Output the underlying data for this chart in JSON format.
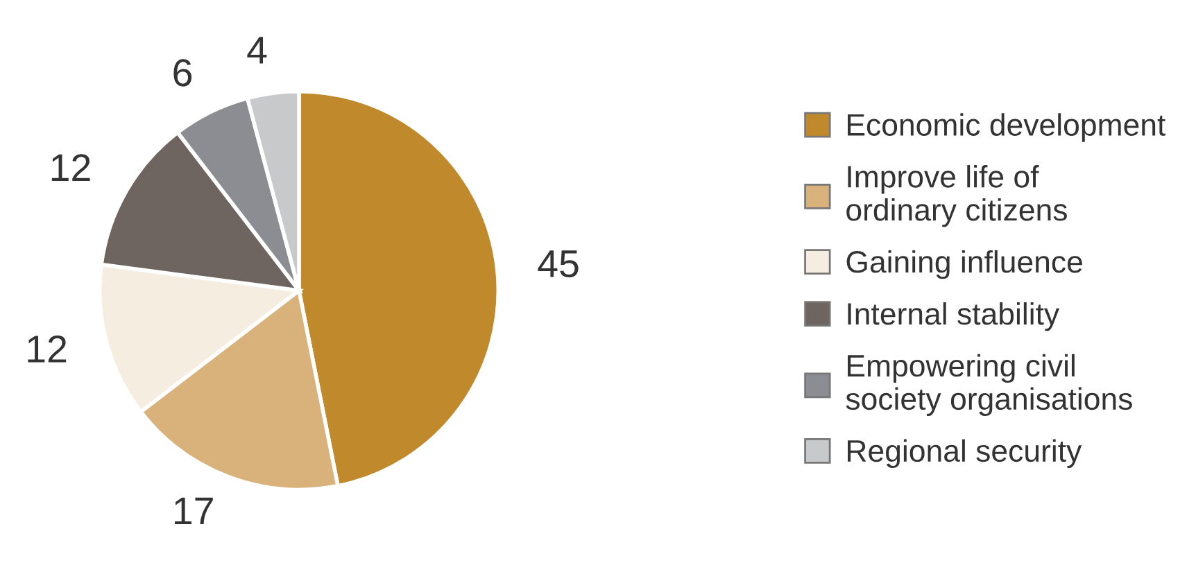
{
  "chart_data": {
    "type": "pie",
    "categories": [
      "Economic development",
      "Improve life of\nordinary citizens",
      "Gaining influence",
      "Internal stability",
      "Empowering civil\nsociety organisations",
      "Regional security"
    ],
    "values": [
      45,
      17,
      12,
      12,
      6,
      4
    ],
    "colors": [
      "#c08a2c",
      "#d8b27a",
      "#f5ede0",
      "#6e6460",
      "#8c8d92",
      "#c8c9cb"
    ],
    "data_labels": true,
    "legend": "right"
  }
}
